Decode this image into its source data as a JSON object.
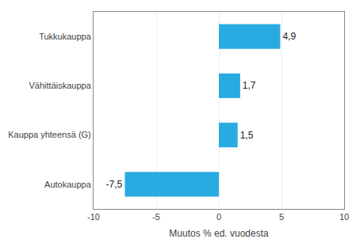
{
  "chart_data": {
    "type": "bar",
    "orientation": "horizontal",
    "categories": [
      "Tukku­kauppa",
      "Vähittäiskauppa",
      "Kauppa yhteensä (G)",
      "Autokauppa"
    ],
    "values": [
      4.9,
      1.7,
      1.5,
      -7.5
    ],
    "value_labels": [
      "4,9",
      "1,7",
      "1,5",
      "-7,5"
    ],
    "data_labels": true,
    "color": "#29abe2",
    "xlabel": "Muutos % ed. vuodesta",
    "xlim": [
      -10,
      10
    ],
    "xticks": [
      -10,
      -5,
      0,
      5,
      10
    ],
    "grid": true
  }
}
